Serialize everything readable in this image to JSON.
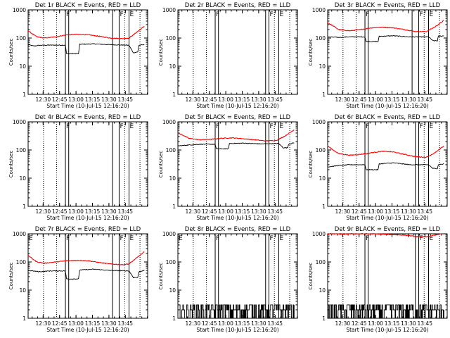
{
  "figure": {
    "xlabel": "Start Time (10-Jul-15 12:16:20)",
    "xticks": [
      "12:30",
      "12:45",
      "13:00",
      "13:15",
      "13:30",
      "13:45"
    ],
    "ylabel": "Counts/sec",
    "yticks": [
      "1",
      "10",
      "100",
      "1000"
    ],
    "flag_F": "F",
    "flag_E": "E",
    "colors": {
      "events": "#000000",
      "lld": "#ff0000"
    }
  },
  "chart_data": [
    {
      "type": "line",
      "title": "Det 1r BLACK = Events, RED = LLD",
      "x_unit": "minutes after 12:16:20",
      "ylim": [
        1,
        1000
      ],
      "yscale": "log",
      "series": [
        {
          "name": "Events",
          "color": "#000000",
          "values": [
            [
              0,
              58
            ],
            [
              5,
              52
            ],
            [
              10,
              55
            ],
            [
              20,
              56
            ],
            [
              34,
              56
            ],
            [
              35,
              28
            ],
            [
              46,
              28
            ],
            [
              47,
              60
            ],
            [
              60,
              62
            ],
            [
              75,
              58
            ],
            [
              89,
              56
            ],
            [
              92,
              55
            ],
            [
              96,
              30
            ],
            [
              100,
              32
            ],
            [
              101,
              55
            ],
            [
              106,
              58
            ]
          ]
        },
        {
          "name": "LLD",
          "color": "#ff0000",
          "values": [
            [
              0,
              180
            ],
            [
              4,
              140
            ],
            [
              8,
              110
            ],
            [
              15,
              100
            ],
            [
              25,
              110
            ],
            [
              35,
              130
            ],
            [
              45,
              135
            ],
            [
              55,
              130
            ],
            [
              65,
              115
            ],
            [
              75,
              100
            ],
            [
              85,
              95
            ],
            [
              92,
              100
            ],
            [
              98,
              150
            ],
            [
              106,
              260
            ]
          ]
        }
      ]
    },
    {
      "type": "line",
      "title": "Det 2r BLACK = Events, RED = LLD",
      "ylim": [
        1,
        1000
      ],
      "yscale": "log",
      "series": []
    },
    {
      "type": "line",
      "title": "Det 3r BLACK = Events, RED = LLD",
      "ylim": [
        1,
        1000
      ],
      "yscale": "log",
      "series": [
        {
          "name": "Events",
          "color": "#000000",
          "values": [
            [
              0,
              110
            ],
            [
              10,
              105
            ],
            [
              20,
              110
            ],
            [
              34,
              110
            ],
            [
              35,
              75
            ],
            [
              46,
              75
            ],
            [
              47,
              115
            ],
            [
              60,
              120
            ],
            [
              75,
              110
            ],
            [
              92,
              110
            ],
            [
              96,
              80
            ],
            [
              100,
              80
            ],
            [
              101,
              115
            ],
            [
              106,
              120
            ]
          ]
        },
        {
          "name": "LLD",
          "color": "#ff0000",
          "values": [
            [
              0,
              350
            ],
            [
              5,
              270
            ],
            [
              10,
              200
            ],
            [
              20,
              180
            ],
            [
              30,
              200
            ],
            [
              40,
              230
            ],
            [
              50,
              240
            ],
            [
              60,
              230
            ],
            [
              70,
              200
            ],
            [
              80,
              170
            ],
            [
              90,
              170
            ],
            [
              98,
              250
            ],
            [
              106,
              420
            ]
          ]
        }
      ]
    },
    {
      "type": "line",
      "title": "Det 4r BLACK = Events, RED = LLD",
      "ylim": [
        1,
        1000
      ],
      "yscale": "log",
      "series": []
    },
    {
      "type": "line",
      "title": "Det 5r BLACK = Events, RED = LLD",
      "ylim": [
        1,
        1000
      ],
      "yscale": "log",
      "series": [
        {
          "name": "Events",
          "color": "#000000",
          "values": [
            [
              0,
              140
            ],
            [
              10,
              150
            ],
            [
              20,
              160
            ],
            [
              34,
              160
            ],
            [
              35,
              110
            ],
            [
              46,
              110
            ],
            [
              47,
              170
            ],
            [
              60,
              175
            ],
            [
              75,
              165
            ],
            [
              92,
              170
            ],
            [
              96,
              120
            ],
            [
              100,
              120
            ],
            [
              101,
              160
            ],
            [
              106,
              180
            ]
          ]
        },
        {
          "name": "LLD",
          "color": "#ff0000",
          "values": [
            [
              0,
              400
            ],
            [
              5,
              330
            ],
            [
              10,
              260
            ],
            [
              20,
              230
            ],
            [
              30,
              240
            ],
            [
              40,
              260
            ],
            [
              50,
              270
            ],
            [
              60,
              250
            ],
            [
              70,
              230
            ],
            [
              80,
              210
            ],
            [
              90,
              220
            ],
            [
              98,
              320
            ],
            [
              106,
              520
            ]
          ]
        }
      ]
    },
    {
      "type": "line",
      "title": "Det 6r BLACK = Events, RED = LLD",
      "ylim": [
        1,
        1000
      ],
      "yscale": "log",
      "series": [
        {
          "name": "Events",
          "color": "#000000",
          "values": [
            [
              0,
              25
            ],
            [
              10,
              28
            ],
            [
              20,
              30
            ],
            [
              34,
              30
            ],
            [
              35,
              20
            ],
            [
              46,
              20
            ],
            [
              47,
              32
            ],
            [
              60,
              35
            ],
            [
              75,
              30
            ],
            [
              92,
              30
            ],
            [
              96,
              22
            ],
            [
              100,
              22
            ],
            [
              101,
              30
            ],
            [
              106,
              32
            ]
          ]
        },
        {
          "name": "LLD",
          "color": "#ff0000",
          "values": [
            [
              0,
              140
            ],
            [
              5,
              100
            ],
            [
              10,
              75
            ],
            [
              20,
              65
            ],
            [
              30,
              70
            ],
            [
              40,
              80
            ],
            [
              50,
              90
            ],
            [
              60,
              85
            ],
            [
              70,
              70
            ],
            [
              80,
              58
            ],
            [
              90,
              55
            ],
            [
              98,
              80
            ],
            [
              106,
              140
            ]
          ]
        }
      ]
    },
    {
      "type": "line",
      "title": "Det 7r BLACK = Events, RED = LLD",
      "ylim": [
        1,
        1000
      ],
      "yscale": "log",
      "series": [
        {
          "name": "Events",
          "color": "#000000",
          "values": [
            [
              0,
              50
            ],
            [
              10,
              45
            ],
            [
              20,
              48
            ],
            [
              34,
              48
            ],
            [
              35,
              25
            ],
            [
              46,
              25
            ],
            [
              47,
              52
            ],
            [
              60,
              55
            ],
            [
              75,
              50
            ],
            [
              92,
              48
            ],
            [
              96,
              28
            ],
            [
              100,
              28
            ],
            [
              101,
              45
            ],
            [
              106,
              50
            ]
          ]
        },
        {
          "name": "LLD",
          "color": "#ff0000",
          "values": [
            [
              0,
              170
            ],
            [
              4,
              130
            ],
            [
              8,
              100
            ],
            [
              15,
              90
            ],
            [
              25,
              100
            ],
            [
              35,
              110
            ],
            [
              45,
              115
            ],
            [
              55,
              110
            ],
            [
              65,
              95
            ],
            [
              75,
              85
            ],
            [
              85,
              80
            ],
            [
              92,
              85
            ],
            [
              98,
              130
            ],
            [
              106,
              230
            ]
          ]
        }
      ]
    },
    {
      "type": "line",
      "title": "Det 8r BLACK = Events, RED = LLD",
      "ylim": [
        1,
        1000
      ],
      "yscale": "log",
      "series": [
        {
          "name": "Events",
          "color": "#000000",
          "noise": {
            "levels": [
              1,
              2,
              3
            ],
            "min_x": 0,
            "max_x": 106
          }
        }
      ]
    },
    {
      "type": "line",
      "title": "Det 9r BLACK = Events, RED = LLD",
      "ylim": [
        1,
        1000
      ],
      "yscale": "log",
      "series": [
        {
          "name": "Events",
          "color": "#000000",
          "noise": {
            "levels": [
              1,
              2,
              3
            ],
            "min_x": 0,
            "max_x": 106
          }
        },
        {
          "name": "LLD",
          "color": "#ff0000",
          "values": [
            [
              0,
              1000
            ],
            [
              10,
              980
            ],
            [
              15,
              950
            ],
            [
              20,
              1000
            ],
            [
              40,
              1000
            ],
            [
              70,
              900
            ],
            [
              80,
              800
            ],
            [
              90,
              780
            ],
            [
              98,
              900
            ],
            [
              104,
              1000
            ]
          ]
        }
      ]
    }
  ],
  "panel_markers": [
    {
      "dotted": [
        14,
        26,
        88,
        102
      ],
      "solid": [
        34,
        37,
        77,
        83,
        92
      ]
    },
    {
      "dotted": [
        14,
        26,
        88,
        102
      ],
      "solid": [
        34,
        37,
        80,
        83,
        92
      ]
    },
    {
      "dotted": [
        14,
        26,
        88,
        102
      ],
      "solid": [
        34,
        37,
        77,
        83,
        92
      ]
    },
    {
      "dotted": [
        14,
        26,
        88,
        102
      ],
      "solid": [
        34,
        37,
        77,
        83,
        92
      ]
    },
    {
      "dotted": [
        14,
        26,
        88,
        102
      ],
      "solid": [
        34,
        37,
        80,
        83,
        92
      ]
    },
    {
      "dotted": [
        14,
        26,
        88,
        102
      ],
      "solid": [
        34,
        37,
        80,
        83,
        92
      ]
    },
    {
      "dotted": [
        14,
        26,
        88,
        102
      ],
      "solid": [
        34,
        37,
        77,
        83,
        92
      ]
    },
    {
      "dotted": [
        14,
        26,
        88,
        102
      ],
      "solid": [
        34,
        37,
        80,
        83,
        92
      ]
    },
    {
      "dotted": [
        14,
        26,
        88,
        102
      ],
      "solid": [
        34,
        37,
        80,
        83,
        92
      ]
    }
  ]
}
